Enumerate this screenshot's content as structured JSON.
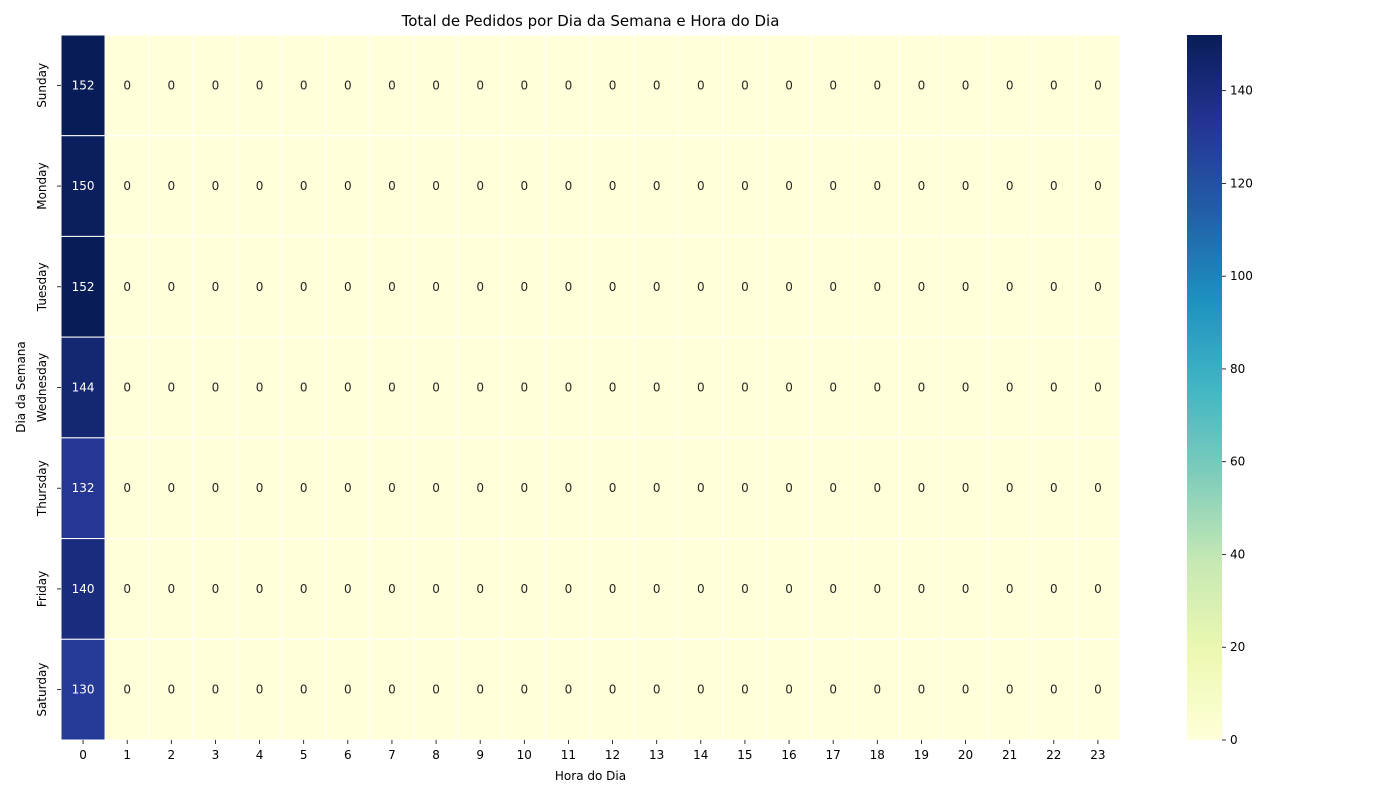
{
  "chart_data": {
    "type": "heatmap",
    "title": "Total de Pedidos por Dia da Semana e Hora do Dia",
    "xlabel": "Hora do Dia",
    "ylabel": "Dia da Semana",
    "x": [
      "0",
      "1",
      "2",
      "3",
      "4",
      "5",
      "6",
      "7",
      "8",
      "9",
      "10",
      "11",
      "12",
      "13",
      "14",
      "15",
      "16",
      "17",
      "18",
      "19",
      "20",
      "21",
      "22",
      "23"
    ],
    "y": [
      "Sunday",
      "Monday",
      "Tuesday",
      "Wednesday",
      "Thursday",
      "Friday",
      "Saturday"
    ],
    "values": [
      [
        152,
        0,
        0,
        0,
        0,
        0,
        0,
        0,
        0,
        0,
        0,
        0,
        0,
        0,
        0,
        0,
        0,
        0,
        0,
        0,
        0,
        0,
        0,
        0
      ],
      [
        150,
        0,
        0,
        0,
        0,
        0,
        0,
        0,
        0,
        0,
        0,
        0,
        0,
        0,
        0,
        0,
        0,
        0,
        0,
        0,
        0,
        0,
        0,
        0
      ],
      [
        152,
        0,
        0,
        0,
        0,
        0,
        0,
        0,
        0,
        0,
        0,
        0,
        0,
        0,
        0,
        0,
        0,
        0,
        0,
        0,
        0,
        0,
        0,
        0
      ],
      [
        144,
        0,
        0,
        0,
        0,
        0,
        0,
        0,
        0,
        0,
        0,
        0,
        0,
        0,
        0,
        0,
        0,
        0,
        0,
        0,
        0,
        0,
        0,
        0
      ],
      [
        132,
        0,
        0,
        0,
        0,
        0,
        0,
        0,
        0,
        0,
        0,
        0,
        0,
        0,
        0,
        0,
        0,
        0,
        0,
        0,
        0,
        0,
        0,
        0
      ],
      [
        140,
        0,
        0,
        0,
        0,
        0,
        0,
        0,
        0,
        0,
        0,
        0,
        0,
        0,
        0,
        0,
        0,
        0,
        0,
        0,
        0,
        0,
        0,
        0
      ],
      [
        130,
        0,
        0,
        0,
        0,
        0,
        0,
        0,
        0,
        0,
        0,
        0,
        0,
        0,
        0,
        0,
        0,
        0,
        0,
        0,
        0,
        0,
        0,
        0
      ]
    ],
    "colorbar": {
      "range": [
        0,
        152
      ],
      "ticks": [
        0,
        20,
        40,
        60,
        80,
        100,
        120,
        140
      ],
      "colormap": "YlGnBu"
    },
    "annotations": true,
    "grid": false
  }
}
